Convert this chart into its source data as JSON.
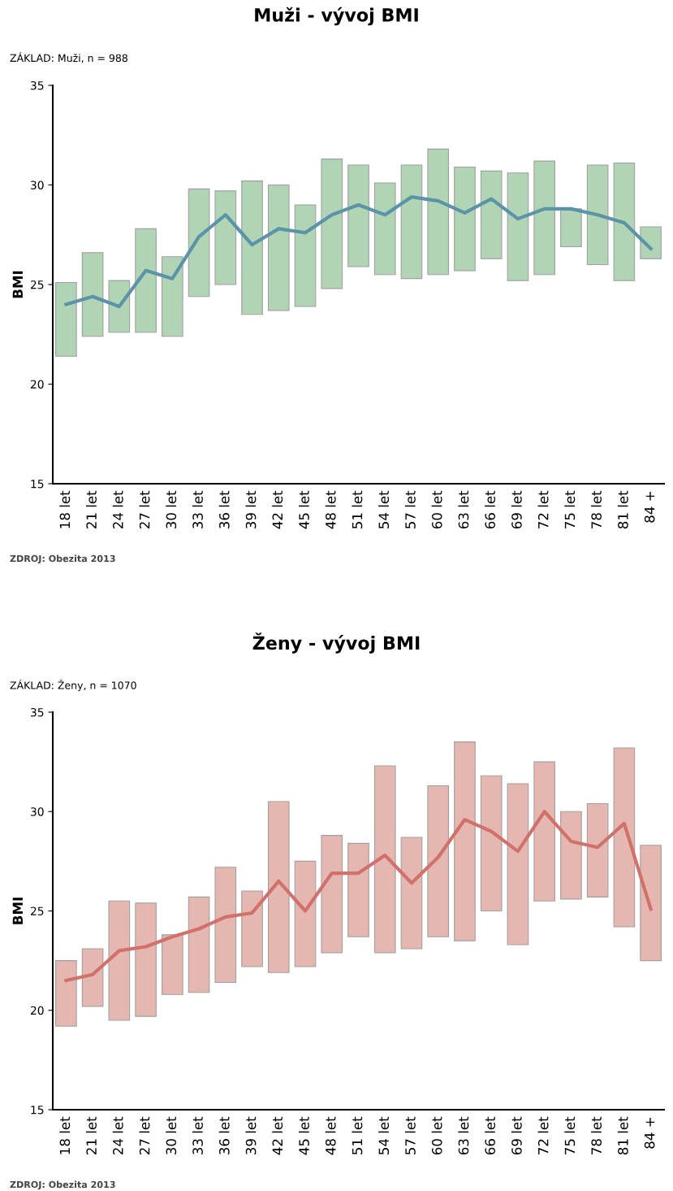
{
  "chart_data": [
    {
      "type": "bar",
      "title": "Muži - vývoj BMI",
      "subtitle": "ZÁKLAD: Muži, n = 988",
      "ylabel": "BMI",
      "annotations": [
        "ZDROJ: Obezita 2013"
      ],
      "categories": [
        "18 let",
        "21 let",
        "24 let",
        "27 let",
        "30 let",
        "33 let",
        "36 let",
        "39 let",
        "42 let",
        "45 let",
        "48 let",
        "51 let",
        "54 let",
        "57 let",
        "60 let",
        "63 let",
        "66 let",
        "69 let",
        "72 let",
        "75 let",
        "78 let",
        "81 let",
        "84 +"
      ],
      "ylim": [
        15,
        35
      ],
      "yticks": [
        15,
        20,
        25,
        30,
        35
      ],
      "grid": false,
      "legend": false,
      "series": [
        {
          "color": "#b0d4b4",
          "base": [
            21.4,
            22.4,
            22.6,
            22.6,
            22.4,
            24.4,
            25.0,
            23.5,
            23.7,
            23.9,
            24.8,
            25.9,
            25.5,
            25.3,
            25.5,
            25.7,
            26.3,
            25.2,
            25.5,
            26.9,
            26.0,
            25.2,
            26.3
          ],
          "values": [
            3.7,
            4.2,
            2.6,
            5.2,
            4.0,
            5.4,
            4.7,
            6.7,
            6.3,
            5.1,
            6.5,
            5.1,
            4.6,
            5.7,
            6.3,
            5.2,
            4.4,
            5.4,
            5.7,
            1.9,
            5.0,
            5.9,
            1.6
          ]
        },
        {
          "type": "line",
          "color": "#5b93a8",
          "values": [
            24.0,
            24.4,
            23.9,
            25.7,
            25.3,
            27.4,
            28.5,
            27.0,
            27.8,
            27.6,
            28.5,
            29.0,
            28.5,
            29.4,
            29.2,
            28.6,
            29.3,
            28.3,
            28.8,
            28.8,
            28.5,
            28.1,
            26.8
          ]
        }
      ]
    },
    {
      "type": "bar",
      "title": "Ženy - vývoj BMI",
      "subtitle": "ZÁKLAD: Ženy, n = 1070",
      "ylabel": "BMI",
      "annotations": [
        "ZDROJ: Obezita 2013"
      ],
      "categories": [
        "18 let",
        "21 let",
        "24 let",
        "27 let",
        "30 let",
        "33 let",
        "36 let",
        "39 let",
        "42 let",
        "45 let",
        "48 let",
        "51 let",
        "54 let",
        "57 let",
        "60 let",
        "63 let",
        "66 let",
        "69 let",
        "72 let",
        "75 let",
        "78 let",
        "81 let",
        "84 +"
      ],
      "ylim": [
        15,
        35
      ],
      "yticks": [
        15,
        20,
        25,
        30,
        35
      ],
      "grid": false,
      "legend": false,
      "series": [
        {
          "color": "#e6b6b0",
          "base": [
            19.2,
            20.2,
            19.5,
            19.7,
            20.8,
            20.9,
            21.4,
            22.2,
            21.9,
            22.2,
            22.9,
            23.7,
            22.9,
            23.1,
            23.7,
            23.5,
            25.0,
            23.3,
            25.5,
            25.6,
            25.7,
            24.2,
            22.5
          ],
          "values": [
            3.3,
            2.9,
            6.0,
            5.7,
            3.0,
            4.8,
            5.8,
            3.8,
            8.6,
            5.3,
            5.9,
            4.7,
            9.4,
            5.6,
            7.6,
            10.0,
            6.8,
            8.1,
            7.0,
            4.4,
            4.7,
            9.0,
            5.8
          ]
        },
        {
          "type": "line",
          "color": "#d0716c",
          "values": [
            21.5,
            21.8,
            23.0,
            23.2,
            23.7,
            24.1,
            24.7,
            24.9,
            26.5,
            25.0,
            26.9,
            26.9,
            27.8,
            26.4,
            27.7,
            29.6,
            29.0,
            28.0,
            30.0,
            28.5,
            28.2,
            29.4,
            25.1
          ]
        }
      ]
    }
  ]
}
